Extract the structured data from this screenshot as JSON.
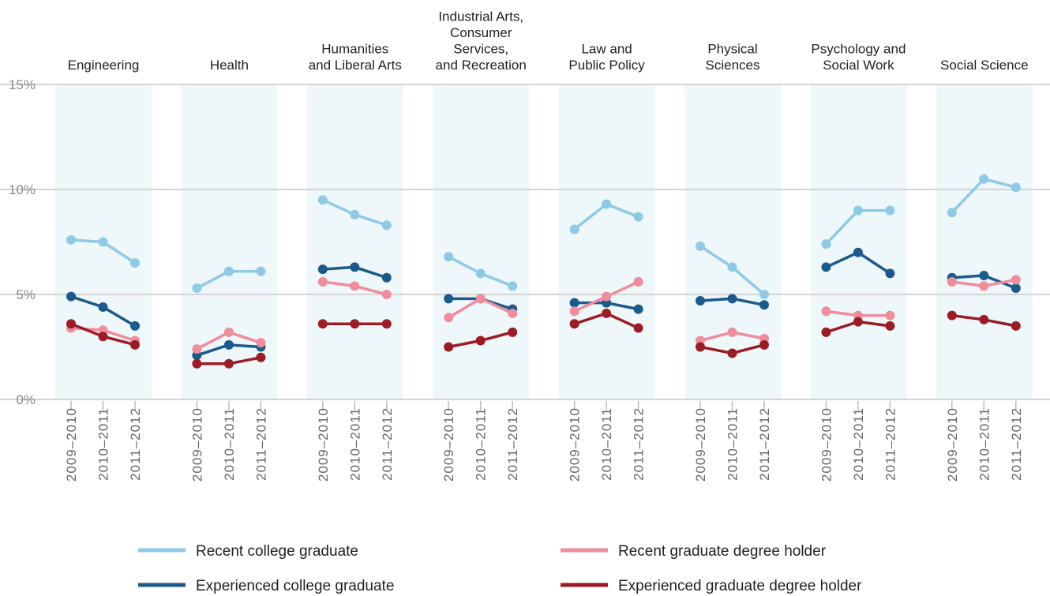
{
  "chart_data": {
    "type": "line",
    "categories": [
      "2009–2010",
      "2010–2011",
      "2011–2012"
    ],
    "ylim": [
      0,
      15
    ],
    "yticks": [
      {
        "value": 0,
        "label": "0%"
      },
      {
        "value": 5,
        "label": "5%"
      },
      {
        "value": 10,
        "label": "10%"
      },
      {
        "value": 15,
        "label": "15%"
      }
    ],
    "grid": true,
    "series": [
      {
        "name": "Recent college graduate",
        "color": "#8ecae6"
      },
      {
        "name": "Experienced college graduate",
        "color": "#1b5a8c"
      },
      {
        "name": "Recent graduate degree holder",
        "color": "#f08c9c"
      },
      {
        "name": "Experienced graduate degree holder",
        "color": "#9b1c24"
      }
    ],
    "panels": [
      {
        "title": "Engineering",
        "values": [
          [
            7.6,
            7.5,
            6.5
          ],
          [
            4.9,
            4.4,
            3.5
          ],
          [
            3.4,
            3.3,
            2.8
          ],
          [
            3.6,
            3.0,
            2.6
          ]
        ]
      },
      {
        "title": "Health",
        "values": [
          [
            5.3,
            6.1,
            6.1
          ],
          [
            2.1,
            2.6,
            2.5
          ],
          [
            2.4,
            3.2,
            2.7
          ],
          [
            1.7,
            1.7,
            2.0
          ]
        ]
      },
      {
        "title": "Humanities\nand Liberal Arts",
        "values": [
          [
            9.5,
            8.8,
            8.3
          ],
          [
            6.2,
            6.3,
            5.8
          ],
          [
            5.6,
            5.4,
            5.0
          ],
          [
            3.6,
            3.6,
            3.6
          ]
        ]
      },
      {
        "title": "Industrial Arts,\nConsumer\nServices,\nand Recreation",
        "values": [
          [
            6.8,
            6.0,
            5.4
          ],
          [
            4.8,
            4.8,
            4.3
          ],
          [
            3.9,
            4.8,
            4.1
          ],
          [
            2.5,
            2.8,
            3.2
          ]
        ]
      },
      {
        "title": "Law and\nPublic Policy",
        "values": [
          [
            8.1,
            9.3,
            8.7
          ],
          [
            4.6,
            4.6,
            4.3
          ],
          [
            4.2,
            4.9,
            5.6
          ],
          [
            3.6,
            4.1,
            3.4
          ]
        ]
      },
      {
        "title": "Physical\nSciences",
        "values": [
          [
            7.3,
            6.3,
            5.0
          ],
          [
            4.7,
            4.8,
            4.5
          ],
          [
            2.8,
            3.2,
            2.9
          ],
          [
            2.5,
            2.2,
            2.6
          ]
        ]
      },
      {
        "title": "Psychology and\nSocial Work",
        "values": [
          [
            7.4,
            9.0,
            9.0
          ],
          [
            6.3,
            7.0,
            6.0
          ],
          [
            4.2,
            4.0,
            4.0
          ],
          [
            3.2,
            3.7,
            3.5
          ]
        ]
      },
      {
        "title": "Social Science",
        "values": [
          [
            8.9,
            10.5,
            10.1
          ],
          [
            5.8,
            5.9,
            5.3
          ],
          [
            5.6,
            5.4,
            5.7
          ],
          [
            4.0,
            3.8,
            3.5
          ]
        ]
      }
    ]
  }
}
